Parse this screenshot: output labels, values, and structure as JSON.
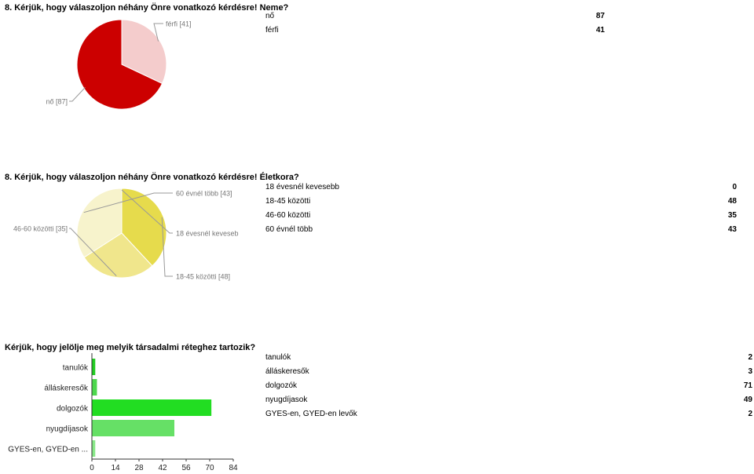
{
  "sections": [
    {
      "title": "8. Kérjük, hogy válaszoljon néhány Önre vonatkozó kérdésre! Neme?"
    },
    {
      "title": "8. Kérjük, hogy válaszoljon néhány Önre vonatkozó kérdésre! Életkora?"
    },
    {
      "title": "Kérjük, hogy jelölje meg melyik társadalmi réteghez tartozik?"
    }
  ],
  "chart_data": [
    {
      "type": "pie",
      "title": "8. Kérjük, hogy válaszoljon néhány Önre vonatkozó kérdésre! Neme?",
      "categories": [
        "nő",
        "férfi"
      ],
      "values": [
        87,
        41
      ],
      "slice_labels": [
        "nő [87]",
        "férfi [41]"
      ],
      "colors": [
        "#cc0000",
        "#f4cccc"
      ]
    },
    {
      "type": "pie",
      "title": "8. Kérjük, hogy válaszoljon néhány Önre vonatkozó kérdésre! Életkora?",
      "categories": [
        "18 évesnél kevesebb",
        "18-45 közötti",
        "46-60 közötti",
        "60 évnél több"
      ],
      "values": [
        0,
        48,
        35,
        43
      ],
      "slice_labels": [
        "18 évesnél keveseb",
        "18-45 közötti [48]",
        "46-60 közötti [35]",
        "60 évnél több [43]"
      ],
      "colors": [
        "#bfb040",
        "#e6db4c",
        "#f0e68c",
        "#f7f3cc"
      ]
    },
    {
      "type": "bar",
      "orientation": "horizontal",
      "title": "Kérjük, hogy jelölje meg melyik társadalmi réteghez tartozik?",
      "categories": [
        "tanulók",
        "álláskeresők",
        "dolgozók",
        "nyugdíjasok",
        "GYES-en, GYED-en levők"
      ],
      "category_tick_labels": [
        "tanulók",
        "álláskeresők",
        "dolgozók",
        "nyugdíjasok",
        "GYES-en, GYED-en ..."
      ],
      "values": [
        2,
        3,
        71,
        49,
        2
      ],
      "xlim": [
        0,
        84
      ],
      "xticks": [
        0,
        14,
        28,
        42,
        56,
        70,
        84
      ],
      "colors": [
        "#22cc22",
        "#4dd84d",
        "#22dd22",
        "#66e066",
        "#88e888"
      ],
      "grid": false,
      "legend": "none"
    }
  ]
}
